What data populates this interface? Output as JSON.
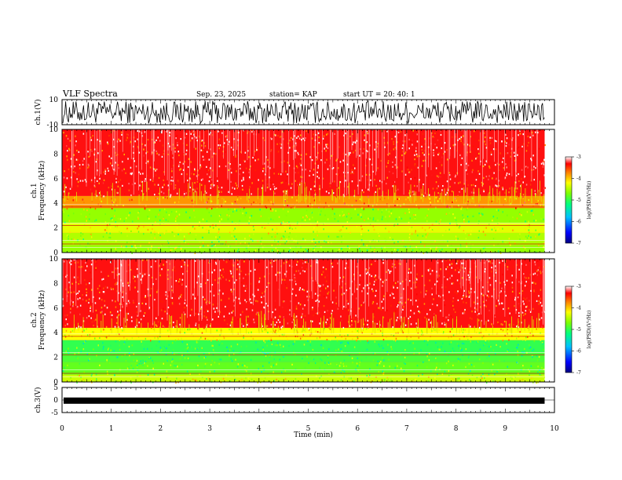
{
  "header": {
    "title": "VLF Spectra",
    "date": "Sep. 23, 2025",
    "station": "station= KAP",
    "start": "start  UT  =   20: 40: 1"
  },
  "chart_data": {
    "type": "heatmap",
    "title": "VLF Spectra",
    "xlabel": "Time  (min)",
    "xlim": [
      0,
      10
    ],
    "x_ticks": [
      "0",
      "1",
      "2",
      "3",
      "4",
      "5",
      "6",
      "7",
      "8",
      "9",
      "10"
    ],
    "data_end_min": 9.8,
    "panels": [
      {
        "id": "ch1_waveform",
        "type": "line",
        "ylabel": "ch.1(V)",
        "ylim": [
          -10,
          10
        ],
        "y_ticks": [
          "10",
          "-10"
        ],
        "band": [
          -9,
          9
        ]
      },
      {
        "id": "ch1_spectrogram",
        "type": "heatmap",
        "ylabel_top": "ch.1",
        "ylabel": "Frequency  (kHz)",
        "ylim": [
          0,
          10
        ],
        "y_ticks": [
          "0",
          "2",
          "4",
          "6",
          "8",
          "10"
        ],
        "colorbar_label": "log(PSD)(V²/Hz)",
        "colorbar_range": [
          -7,
          -3
        ],
        "colorbar_ticks": [
          "-3",
          "-4",
          "-5",
          "-6",
          "-7"
        ],
        "bands": [
          {
            "from": 0,
            "to": 0.6,
            "level": -4.6
          },
          {
            "from": 0.6,
            "to": 1.6,
            "level": -4.5
          },
          {
            "from": 1.6,
            "to": 2.4,
            "level": -4.3
          },
          {
            "from": 2.4,
            "to": 3.6,
            "level": -4.6
          },
          {
            "from": 3.6,
            "to": 4.6,
            "level": -3.8
          },
          {
            "from": 4.6,
            "to": 10,
            "level": -3.3
          }
        ]
      },
      {
        "id": "ch2_spectrogram",
        "type": "heatmap",
        "ylabel_top": "ch.2",
        "ylabel": "Frequency  (kHz)",
        "ylim": [
          0,
          10
        ],
        "y_ticks": [
          "0",
          "2",
          "4",
          "6",
          "8",
          "10"
        ],
        "colorbar_label": "log(PSD)(V²/Hz)",
        "colorbar_range": [
          -7,
          -3
        ],
        "colorbar_ticks": [
          "-3",
          "-4",
          "-5",
          "-6",
          "-7"
        ],
        "bands": [
          {
            "from": 0,
            "to": 0.6,
            "level": -4.4
          },
          {
            "from": 0.6,
            "to": 1.6,
            "level": -4.8
          },
          {
            "from": 1.6,
            "to": 2.4,
            "level": -4.9
          },
          {
            "from": 2.4,
            "to": 3.4,
            "level": -5.0
          },
          {
            "from": 3.4,
            "to": 4.4,
            "level": -4.2
          },
          {
            "from": 4.4,
            "to": 10,
            "level": -3.3
          }
        ]
      },
      {
        "id": "ch3_waveform",
        "type": "line",
        "ylabel": "ch.3(V)",
        "ylim": [
          -5,
          5
        ],
        "y_ticks": [
          "5",
          "0",
          "-5"
        ],
        "band": [
          -1.5,
          1.0
        ]
      }
    ]
  }
}
